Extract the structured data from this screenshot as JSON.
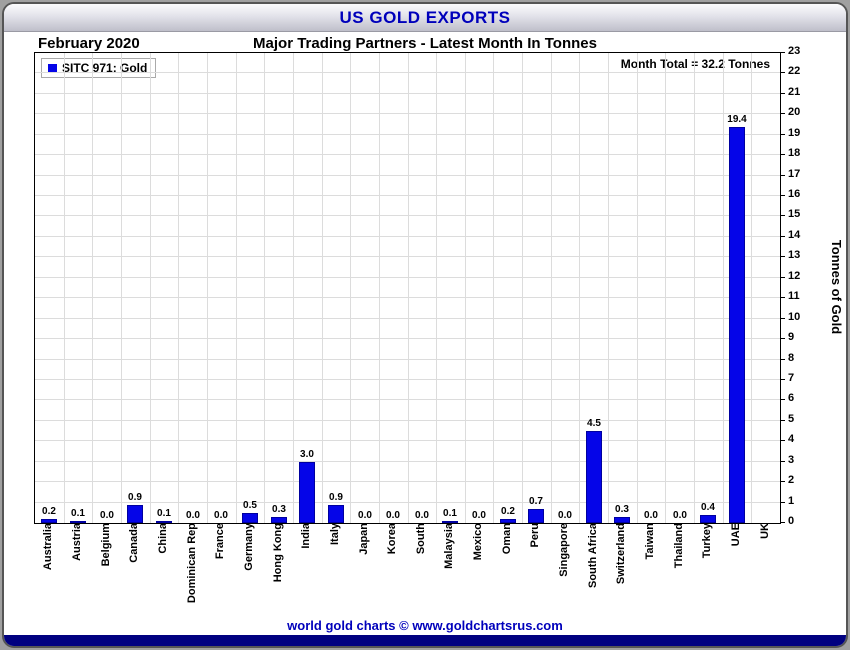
{
  "header": {
    "title": "US GOLD EXPORTS",
    "month": "February 2020",
    "subtitle": "Major Trading Partners - Latest Month In Tonnes",
    "month_total": "Month Total = 32.2 Tonnes"
  },
  "legend": {
    "label": "SITC 971: Gold"
  },
  "footer": {
    "text": "world gold charts © www.goldchartsrus.com"
  },
  "colors": {
    "bar": "#0505e8",
    "header_text": "#0000bb",
    "footer_text": "#0000bb",
    "grid": "#dcdcdc",
    "bottom_strip": "#000080"
  },
  "chart_data": {
    "type": "bar",
    "title": "US GOLD EXPORTS",
    "subtitle": "Major Trading Partners - Latest Month In Tonnes",
    "period": "February 2020",
    "month_total_tonnes": 32.2,
    "ylabel": "Tonnes of Gold",
    "xlabel": "",
    "ylim": [
      0,
      23
    ],
    "y_tick_interval": 1,
    "grid": true,
    "legend_position": "top-left",
    "series_name": "SITC 971: Gold",
    "categories": [
      "Australia",
      "Austria",
      "Belgium",
      "Canada",
      "China",
      "Dominican Rep",
      "France",
      "Germany",
      "Hong Kong",
      "India",
      "Italy",
      "Japan",
      "Korea",
      "South",
      "Malaysia",
      "Mexico",
      "Oman",
      "Peru",
      "Singapore",
      "South Africa",
      "Switzerland",
      "Taiwan",
      "Thailand",
      "Turkey",
      "UAE",
      "UK"
    ],
    "values": [
      0.2,
      0.1,
      0.0,
      0.9,
      0.1,
      0.0,
      0.0,
      0.5,
      0.3,
      3.0,
      0.9,
      0.0,
      0.0,
      0.0,
      0.1,
      0.0,
      0.2,
      0.7,
      0.0,
      4.5,
      0.3,
      0.0,
      0.0,
      0.4,
      19.4,
      0.0
    ],
    "value_labels": [
      "0.2",
      "0.1",
      "0.0",
      "0.9",
      "0.1",
      "0.0",
      "0.0",
      "0.5",
      "0.3",
      "3.0",
      "0.9",
      "0.0",
      "0.0",
      "0.0",
      "0.1",
      "0.0",
      "0.2",
      "0.7",
      "0.0",
      "4.5",
      "0.3",
      "0.0",
      "0.0",
      "0.4",
      "19.4",
      ""
    ]
  }
}
